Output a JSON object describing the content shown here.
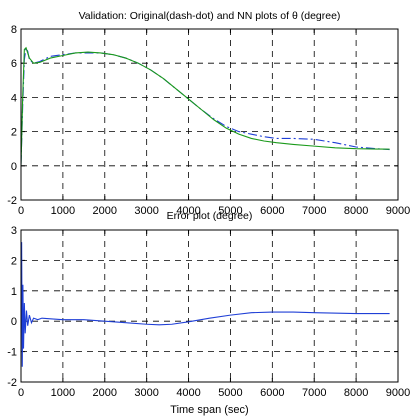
{
  "chart_data": [
    {
      "type": "line",
      "title": "Validation: Original(dash-dot) and NN plots of θ (degree)",
      "xlabel": "",
      "ylabel": "",
      "xlim": [
        0,
        9000
      ],
      "ylim": [
        -2,
        8
      ],
      "xticks": [
        "0",
        "1000",
        "2000",
        "3000",
        "4000",
        "5000",
        "6000",
        "7000",
        "8000",
        "9000"
      ],
      "yticks": [
        "8",
        "6",
        "4",
        "2",
        "0",
        "-2"
      ],
      "grid": true,
      "colors": {
        "original": "#1f3fd6",
        "nn": "#1a9a1a"
      },
      "series": [
        {
          "style": "dash-dot",
          "x": [
            0,
            40,
            80,
            120,
            160,
            200,
            300,
            450,
            700,
            1000,
            1300,
            1600,
            1900,
            2200,
            2500,
            2800,
            3100,
            3400,
            3700,
            4000,
            4300,
            4600,
            4900,
            5200,
            5500,
            5800,
            6100,
            6500,
            7000,
            7500,
            8000,
            8500,
            8800
          ],
          "y": [
            0.1,
            3.5,
            6.2,
            6.9,
            6.7,
            6.2,
            6.0,
            6.1,
            6.4,
            6.5,
            6.6,
            6.6,
            6.6,
            6.5,
            6.3,
            6.0,
            5.6,
            5.1,
            4.5,
            3.9,
            3.3,
            2.75,
            2.3,
            2.0,
            1.85,
            1.7,
            1.6,
            1.6,
            1.55,
            1.35,
            1.1,
            1.0,
            0.95
          ]
        },
        {
          "style": "solid",
          "x": [
            0,
            40,
            80,
            120,
            160,
            200,
            300,
            450,
            700,
            1000,
            1300,
            1600,
            1900,
            2200,
            2500,
            2800,
            3100,
            3400,
            3700,
            4000,
            4300,
            4600,
            4900,
            5200,
            5500,
            5800,
            6100,
            6500,
            7000,
            7500,
            8000,
            8500,
            8800
          ],
          "y": [
            0.0,
            4.0,
            6.8,
            6.9,
            6.6,
            6.3,
            6.0,
            6.05,
            6.3,
            6.45,
            6.6,
            6.65,
            6.6,
            6.5,
            6.3,
            6.0,
            5.6,
            5.1,
            4.5,
            3.9,
            3.3,
            2.7,
            2.2,
            1.85,
            1.6,
            1.45,
            1.35,
            1.25,
            1.15,
            1.05,
            1.0,
            0.98,
            0.97
          ]
        }
      ]
    },
    {
      "type": "line",
      "title": "Error plot (degree)",
      "xlabel": "Time span (sec)",
      "ylabel": "",
      "xlim": [
        0,
        9000
      ],
      "ylim": [
        -2,
        3
      ],
      "xticks": [
        "0",
        "1000",
        "2000",
        "3000",
        "4000",
        "5000",
        "6000",
        "7000",
        "8000",
        "9000"
      ],
      "yticks": [
        "3",
        "2",
        "1",
        "0",
        "-1",
        "-2"
      ],
      "grid": true,
      "colors": {
        "error": "#1f3fd6"
      },
      "series": [
        {
          "style": "solid",
          "x": [
            0,
            15,
            30,
            45,
            60,
            80,
            100,
            130,
            160,
            200,
            250,
            300,
            400,
            500,
            700,
            1000,
            1500,
            2000,
            2500,
            3000,
            3300,
            3600,
            4000,
            4500,
            5000,
            5500,
            6000,
            6500,
            7000,
            8000,
            8800
          ],
          "y": [
            0.0,
            2.6,
            -1.5,
            1.2,
            -0.9,
            0.6,
            -0.4,
            0.35,
            -0.15,
            0.2,
            -0.05,
            0.1,
            0.05,
            0.1,
            0.08,
            0.05,
            0.05,
            0.0,
            -0.05,
            -0.1,
            -0.12,
            -0.1,
            -0.02,
            0.1,
            0.2,
            0.28,
            0.3,
            0.3,
            0.28,
            0.25,
            0.25
          ]
        }
      ]
    }
  ]
}
